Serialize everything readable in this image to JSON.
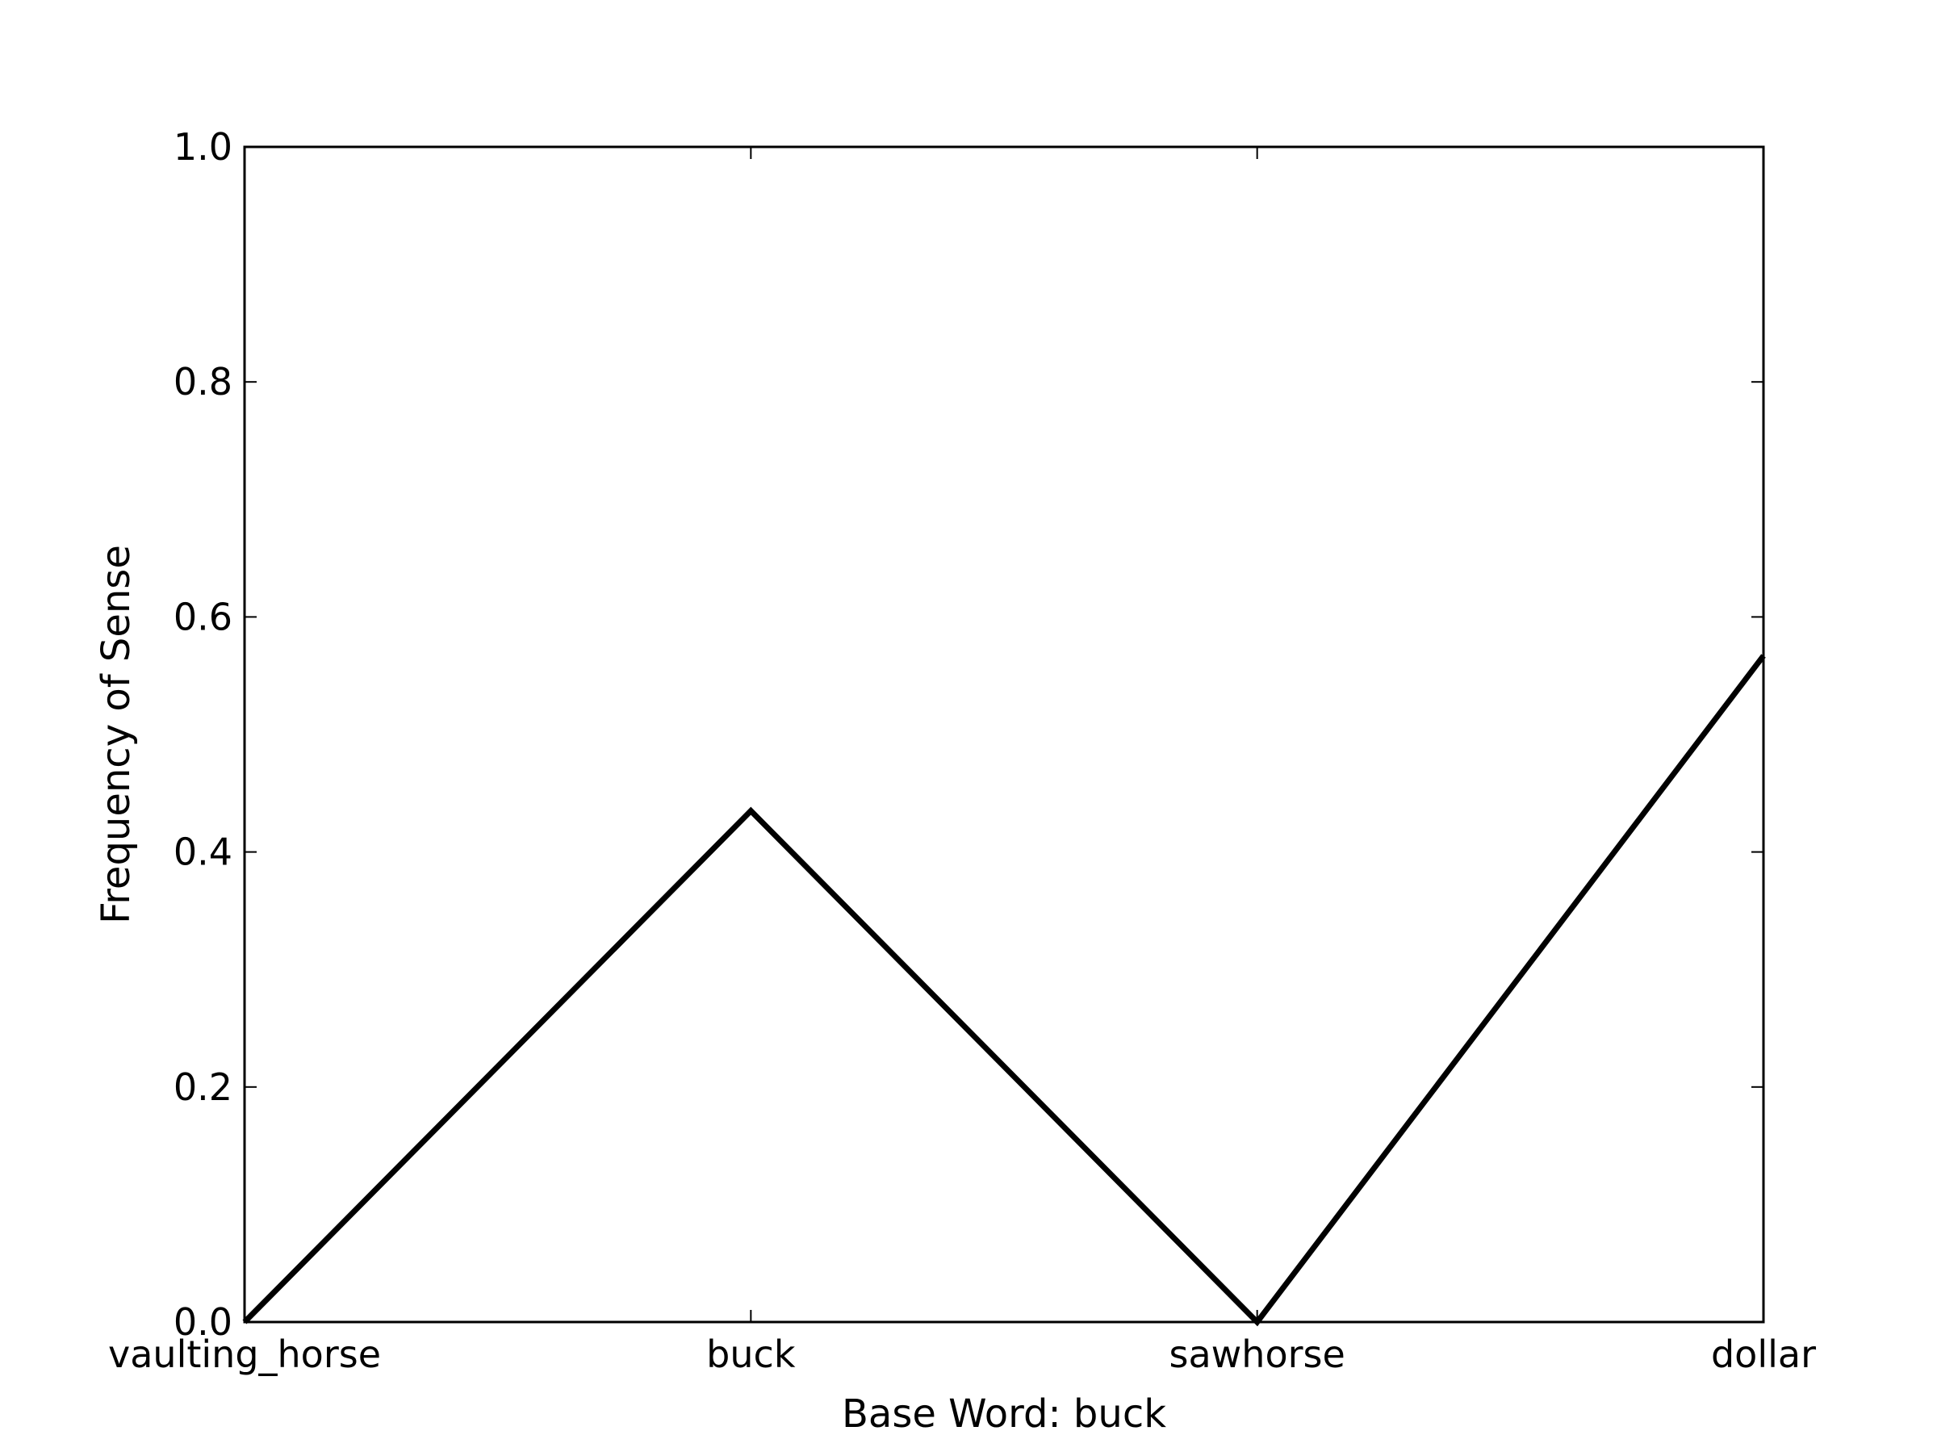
{
  "chart_data": {
    "type": "line",
    "title": "",
    "categories": [
      "vaulting_horse",
      "buck",
      "sawhorse",
      "dollar"
    ],
    "series": [
      {
        "values": [
          0.0,
          0.435,
          0.0,
          0.567
        ]
      }
    ],
    "xlabel": "Base Word: buck",
    "ylabel": "Frequency of Sense",
    "ylim": [
      0,
      1.0
    ],
    "yticks": [
      "0.0",
      "0.2",
      "0.4",
      "0.6",
      "0.8",
      "1.0"
    ],
    "grid": false,
    "legend": "none",
    "line_color": "#000000"
  }
}
